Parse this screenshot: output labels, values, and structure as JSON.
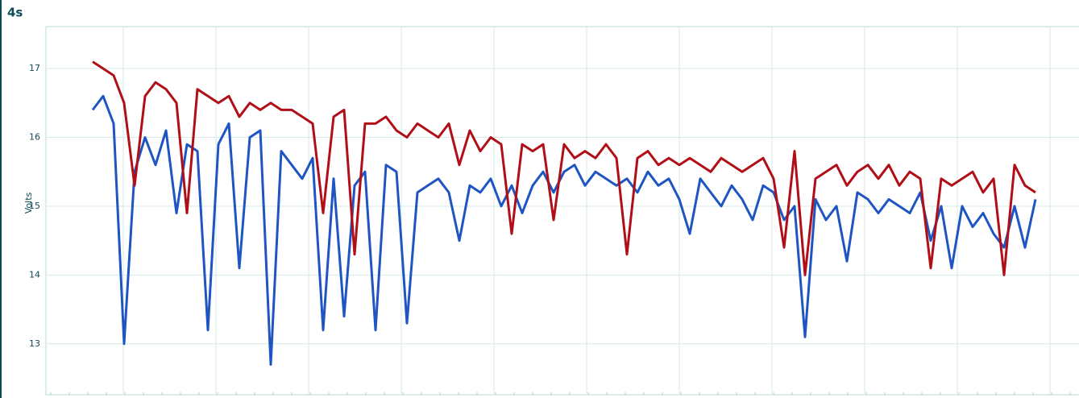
{
  "chart_data": {
    "type": "line",
    "title": "4s",
    "y_label": "Volts",
    "categories": [
      null,
      null,
      null,
      null,
      null,
      null,
      null,
      null,
      null,
      null,
      null,
      null,
      null,
      null,
      null,
      null,
      null,
      null,
      null,
      null,
      null,
      null,
      null,
      null,
      null,
      null,
      null,
      null,
      null,
      null,
      null,
      null,
      null,
      null,
      null,
      null,
      null,
      null,
      null,
      null,
      null,
      null,
      null,
      null,
      null,
      null,
      null,
      null,
      null,
      null,
      null,
      null,
      null,
      null,
      null,
      null,
      null,
      null,
      null,
      null,
      null,
      null,
      null,
      null,
      null,
      null,
      null,
      null,
      null,
      null,
      null,
      null,
      null,
      null,
      null,
      null,
      null,
      null,
      null,
      null,
      null,
      null,
      null,
      null,
      null,
      null,
      null,
      null,
      null,
      null,
      null
    ],
    "series": [
      {
        "color": "#b10f18",
        "values": [
          17.1,
          17.0,
          16.9,
          16.5,
          15.3,
          16.6,
          16.8,
          16.7,
          16.5,
          14.9,
          16.7,
          16.6,
          16.5,
          16.6,
          16.3,
          16.5,
          16.4,
          16.5,
          16.4,
          16.4,
          16.3,
          16.2,
          14.9,
          16.3,
          16.4,
          14.3,
          16.2,
          16.2,
          16.3,
          16.1,
          16.0,
          16.2,
          16.1,
          16.0,
          16.2,
          15.6,
          16.1,
          15.8,
          16.0,
          15.9,
          14.6,
          15.9,
          15.8,
          15.9,
          14.8,
          15.9,
          15.7,
          15.8,
          15.7,
          15.9,
          15.7,
          14.3,
          15.7,
          15.8,
          15.6,
          15.7,
          15.6,
          15.7,
          15.6,
          15.5,
          15.7,
          15.6,
          15.5,
          15.6,
          15.7,
          15.4,
          14.4,
          15.8,
          14.0,
          15.4,
          15.5,
          15.6,
          15.3,
          15.5,
          15.6,
          15.4,
          15.6,
          15.3,
          15.5,
          15.4,
          14.1,
          15.4,
          15.3,
          15.4,
          15.5,
          15.2,
          15.4,
          14.0,
          15.6,
          15.3,
          15.2
        ]
      },
      {
        "color": "#1f55c2",
        "values": [
          16.4,
          16.6,
          16.2,
          13.0,
          15.5,
          16.0,
          15.6,
          16.1,
          14.9,
          15.9,
          15.8,
          13.2,
          15.9,
          16.2,
          14.1,
          16.0,
          16.1,
          12.7,
          15.8,
          15.6,
          15.4,
          15.7,
          13.2,
          15.4,
          13.4,
          15.3,
          15.5,
          13.2,
          15.6,
          15.5,
          13.3,
          15.2,
          15.3,
          15.4,
          15.2,
          14.5,
          15.3,
          15.2,
          15.4,
          15.0,
          15.3,
          14.9,
          15.3,
          15.5,
          15.2,
          15.5,
          15.6,
          15.3,
          15.5,
          15.4,
          15.3,
          15.4,
          15.2,
          15.5,
          15.3,
          15.4,
          15.1,
          14.6,
          15.4,
          15.2,
          15.0,
          15.3,
          15.1,
          14.8,
          15.3,
          15.2,
          14.8,
          15.0,
          13.1,
          15.1,
          14.8,
          15.0,
          14.2,
          15.2,
          15.1,
          14.9,
          15.1,
          15.0,
          14.9,
          15.2,
          14.5,
          15.0,
          14.1,
          15.0,
          14.7,
          14.9,
          14.6,
          14.4,
          15.0,
          14.4,
          15.1
        ]
      }
    ],
    "ylim": [
      12.26,
      17.61
    ],
    "yticks": [
      13,
      14,
      15,
      16,
      17
    ],
    "grid": true
  }
}
